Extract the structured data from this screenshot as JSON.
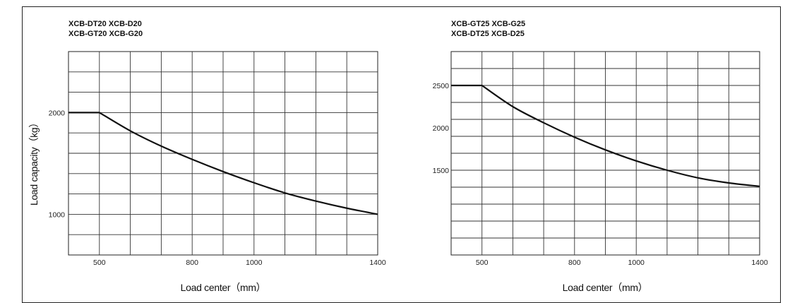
{
  "chart_data": [
    {
      "type": "line",
      "title_lines": [
        "XCB-DT20 XCB-D20",
        "XCB-GT20  XCB-G20"
      ],
      "xlabel": "Load center（mm）",
      "ylabel": "Load capacity（kg）",
      "xlim": [
        400,
        1400
      ],
      "ylim": [
        600,
        2600
      ],
      "x_grid_step": 100,
      "y_grid_step": 200,
      "x_tick_labels": [
        "500",
        "800",
        "1000",
        "1400"
      ],
      "x_tick_values": [
        500,
        800,
        1000,
        1400
      ],
      "y_tick_labels": [
        "2000",
        "1000"
      ],
      "y_tick_values": [
        2000,
        1000
      ],
      "grid": true,
      "series": [
        {
          "x": [
            400,
            500,
            600,
            700,
            800,
            900,
            1000,
            1100,
            1200,
            1300,
            1400
          ],
          "y": [
            2000,
            2000,
            1820,
            1670,
            1540,
            1420,
            1310,
            1210,
            1130,
            1060,
            1000
          ]
        }
      ]
    },
    {
      "type": "line",
      "title_lines": [
        "XCB-GT25  XCB-G25",
        "XCB-DT25  XCB-D25"
      ],
      "xlabel": "Load center（mm）",
      "ylabel": "",
      "xlim": [
        400,
        1400
      ],
      "ylim": [
        500,
        2900
      ],
      "x_grid_step": 100,
      "y_grid_step": 200,
      "x_tick_labels": [
        "500",
        "800",
        "1000",
        "1400"
      ],
      "x_tick_values": [
        500,
        800,
        1000,
        1400
      ],
      "y_tick_labels": [
        "2500",
        "2000",
        "1500"
      ],
      "y_tick_values": [
        2500,
        2000,
        1500
      ],
      "grid": true,
      "series": [
        {
          "x": [
            400,
            500,
            600,
            700,
            800,
            900,
            1000,
            1100,
            1200,
            1300,
            1400
          ],
          "y": [
            2500,
            2500,
            2250,
            2060,
            1890,
            1740,
            1610,
            1500,
            1410,
            1350,
            1310
          ]
        }
      ]
    }
  ]
}
